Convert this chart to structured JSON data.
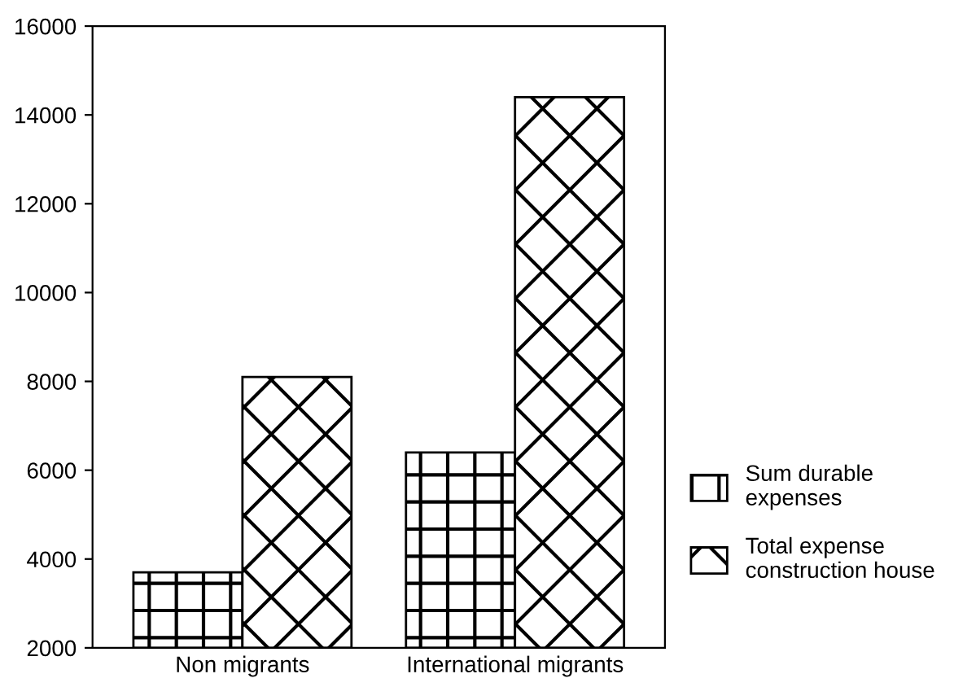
{
  "chart_data": {
    "type": "bar",
    "categories": [
      "Non migrants",
      "International migrants"
    ],
    "series": [
      {
        "name": "Sum durable\nexpenses",
        "color": "#000000",
        "values": [
          3700,
          6400
        ]
      },
      {
        "name": "Total expense\nconstruction house",
        "color": "#000000",
        "values": [
          8100,
          14400
        ]
      }
    ],
    "ylim": [
      2000,
      16000
    ],
    "yticks": [
      2000,
      4000,
      6000,
      8000,
      10000,
      12000,
      14000,
      16000
    ],
    "grid": false,
    "legend": "right"
  }
}
